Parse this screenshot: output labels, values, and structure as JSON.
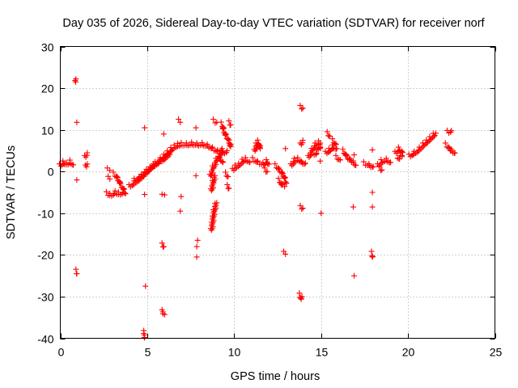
{
  "chart_data": {
    "type": "scatter",
    "title": "Day 035 of 2026, Sidereal Day-to-day VTEC variation (SDTVAR) for receiver norf",
    "xlabel": "GPS time / hours",
    "ylabel": "SDTVAR / TECUs",
    "xlim": [
      0,
      25
    ],
    "ylim": [
      -40,
      30
    ],
    "xticks": [
      0,
      5,
      10,
      15,
      20,
      25
    ],
    "yticks": [
      -40,
      -30,
      -20,
      -10,
      0,
      10,
      20,
      30
    ],
    "xtick_labels": [
      "0",
      "5",
      "10",
      "15",
      "20",
      "25"
    ],
    "ytick_labels": [
      "-40",
      "-30",
      "-20",
      "-10",
      "0",
      "10",
      "20",
      "30"
    ],
    "grid": true,
    "marker": "+",
    "color": "#ff0000",
    "series": [
      {
        "name": "SDTVAR",
        "segments": [
          [
            [
              0.0,
              1.5
            ],
            [
              0.2,
              2.2
            ],
            [
              0.4,
              1.8
            ],
            [
              0.6,
              2.4
            ],
            [
              0.75,
              1.6
            ]
          ],
          [
            [
              1.45,
              3.5
            ],
            [
              1.55,
              4.5
            ]
          ],
          [
            [
              1.5,
              1.2
            ],
            [
              1.55,
              1.8
            ]
          ],
          [
            [
              2.75,
              0.5
            ],
            [
              2.85,
              0.3
            ]
          ],
          [
            [
              2.8,
              -1.5
            ],
            [
              2.85,
              -1.8
            ]
          ],
          [
            [
              2.7,
              -5.2
            ],
            [
              2.9,
              -5.6
            ],
            [
              3.1,
              -5.3
            ]
          ],
          [
            [
              3.1,
              -0.5
            ],
            [
              3.3,
              -1.5
            ],
            [
              3.5,
              -3.2
            ],
            [
              3.7,
              -4.5
            ],
            [
              3.75,
              -5.3
            ]
          ],
          [
            [
              3.2,
              -5.0
            ],
            [
              3.4,
              -5.3
            ],
            [
              3.6,
              -5.1
            ]
          ],
          [
            [
              4.0,
              -3.5
            ],
            [
              4.3,
              -2.6
            ],
            [
              4.6,
              -1.6
            ],
            [
              4.9,
              -0.4
            ],
            [
              5.2,
              0.8
            ],
            [
              5.5,
              2.0
            ],
            [
              5.8,
              3.0
            ],
            [
              6.0,
              3.8
            ],
            [
              6.2,
              4.6
            ],
            [
              6.4,
              5.4
            ],
            [
              6.6,
              6.0
            ],
            [
              6.8,
              6.4
            ],
            [
              7.0,
              6.6
            ],
            [
              7.3,
              6.5
            ],
            [
              7.6,
              6.7
            ],
            [
              7.9,
              6.5
            ],
            [
              8.2,
              6.6
            ],
            [
              8.5,
              6.2
            ],
            [
              8.8,
              5.5
            ],
            [
              9.1,
              4.8
            ],
            [
              9.4,
              4.5
            ],
            [
              9.6,
              5.0
            ]
          ],
          [
            [
              4.3,
              -2.0
            ],
            [
              4.7,
              -1.0
            ],
            [
              5.0,
              0.2
            ],
            [
              5.4,
              1.5
            ],
            [
              5.8,
              2.6
            ],
            [
              6.1,
              3.5
            ],
            [
              6.4,
              5.0
            ]
          ],
          [
            [
              6.85,
              12.2
            ],
            [
              6.9,
              11.8
            ]
          ],
          [
            [
              7.8,
              10.5
            ]
          ],
          [
            [
              8.65,
              -1.0
            ],
            [
              8.8,
              1.0
            ],
            [
              9.0,
              2.8
            ],
            [
              9.2,
              4.0
            ],
            [
              9.3,
              5.5
            ]
          ],
          [
            [
              8.7,
              -4.5
            ],
            [
              8.8,
              -2.5
            ],
            [
              8.9,
              -1.0
            ]
          ],
          [
            [
              9.2,
              3.2
            ],
            [
              9.35,
              2.2
            ]
          ],
          [
            [
              8.7,
              -14.0
            ],
            [
              8.75,
              -12.5
            ],
            [
              8.8,
              -11.0
            ],
            [
              8.85,
              -9.5
            ],
            [
              8.95,
              -8.0
            ],
            [
              9.0,
              -7.5
            ]
          ],
          [
            [
              9.3,
              11.5
            ],
            [
              9.4,
              10.0
            ],
            [
              9.55,
              8.5
            ],
            [
              9.7,
              7.5
            ],
            [
              9.8,
              6.0
            ]
          ],
          [
            [
              8.85,
              12.2
            ],
            [
              9.0,
              11.8
            ]
          ],
          [
            [
              9.55,
              -0.5
            ],
            [
              9.65,
              -1.2
            ]
          ],
          [
            [
              9.65,
              -3.5
            ],
            [
              9.7,
              -4.0
            ]
          ],
          [
            [
              9.75,
              11.8
            ],
            [
              9.8,
              11.2
            ]
          ],
          [
            [
              9.95,
              0.4
            ],
            [
              10.1,
              1.2
            ],
            [
              10.3,
              1.6
            ],
            [
              10.5,
              2.6
            ],
            [
              10.7,
              3.0
            ],
            [
              10.9,
              2.2
            ]
          ],
          [
            [
              11.2,
              5.0
            ],
            [
              11.3,
              6.5
            ],
            [
              11.4,
              7.2
            ],
            [
              11.5,
              5.5
            ]
          ],
          [
            [
              11.1,
              3.0
            ],
            [
              11.4,
              2.2
            ],
            [
              11.7,
              1.8
            ],
            [
              11.9,
              2.5
            ],
            [
              12.0,
              1.8
            ]
          ],
          [
            [
              11.8,
              0.5
            ],
            [
              11.9,
              0.0
            ]
          ],
          [
            [
              12.4,
              1.5
            ],
            [
              12.6,
              0.5
            ],
            [
              12.8,
              -0.5
            ],
            [
              12.95,
              -1.8
            ],
            [
              13.0,
              -2.8
            ]
          ],
          [
            [
              12.6,
              -2.0
            ],
            [
              12.8,
              -3.5
            ],
            [
              12.9,
              -3.6
            ]
          ],
          [
            [
              12.95,
              5.5
            ]
          ],
          [
            [
              12.9,
              -19.5
            ],
            [
              12.95,
              -19.8
            ]
          ],
          [
            [
              13.3,
              1.5
            ],
            [
              13.5,
              2.8
            ],
            [
              13.7,
              3.0
            ],
            [
              13.9,
              2.2
            ],
            [
              14.1,
              2.0
            ]
          ],
          [
            [
              13.85,
              15.5
            ],
            [
              13.95,
              15.2
            ]
          ],
          [
            [
              13.85,
              6.5
            ],
            [
              13.95,
              7.5
            ]
          ],
          [
            [
              13.85,
              -8.5
            ],
            [
              13.95,
              -8.8
            ]
          ],
          [
            [
              13.8,
              -29.5
            ],
            [
              13.85,
              -30.5
            ],
            [
              13.9,
              -30.0
            ]
          ],
          [
            [
              14.3,
              3.5
            ],
            [
              14.5,
              5.2
            ],
            [
              14.7,
              6.5
            ],
            [
              14.9,
              7.0
            ],
            [
              15.0,
              6.5
            ],
            [
              14.8,
              5.0
            ],
            [
              14.6,
              4.0
            ]
          ],
          [
            [
              14.95,
              2.5
            ]
          ],
          [
            [
              15.0,
              -10.0
            ]
          ],
          [
            [
              15.3,
              4.5
            ],
            [
              15.5,
              5.2
            ],
            [
              15.7,
              6.0
            ],
            [
              15.9,
              5.5
            ]
          ],
          [
            [
              15.4,
              9.2
            ],
            [
              15.5,
              8.5
            ]
          ],
          [
            [
              15.7,
              7.5
            ],
            [
              15.85,
              6.5
            ]
          ],
          [
            [
              15.9,
              3.5
            ],
            [
              16.1,
              2.8
            ]
          ],
          [
            [
              16.3,
              5.0
            ],
            [
              16.5,
              3.5
            ],
            [
              16.7,
              2.8
            ],
            [
              16.9,
              2.2
            ],
            [
              17.0,
              1.5
            ]
          ],
          [
            [
              16.9,
              4.0
            ]
          ],
          [
            [
              16.85,
              -8.5
            ]
          ],
          [
            [
              16.9,
              -25.0
            ]
          ],
          [
            [
              17.5,
              2.0
            ],
            [
              17.8,
              1.5
            ],
            [
              18.0,
              1.2
            ]
          ],
          [
            [
              17.95,
              5.2
            ]
          ],
          [
            [
              17.95,
              -5.0
            ]
          ],
          [
            [
              17.95,
              -8.5
            ]
          ],
          [
            [
              17.95,
              -19.5
            ],
            [
              17.95,
              -20.5
            ]
          ],
          [
            [
              18.3,
              1.5
            ],
            [
              18.5,
              2.5
            ],
            [
              18.8,
              2.8
            ],
            [
              19.0,
              2.2
            ]
          ],
          [
            [
              18.4,
              0.8
            ],
            [
              18.5,
              0.4
            ]
          ],
          [
            [
              19.3,
              4.5
            ],
            [
              19.5,
              5.5
            ],
            [
              19.7,
              4.5
            ],
            [
              19.6,
              3.5
            ],
            [
              19.4,
              3.2
            ]
          ],
          [
            [
              20.1,
              3.8
            ],
            [
              20.4,
              4.5
            ],
            [
              20.7,
              5.5
            ],
            [
              20.9,
              6.5
            ],
            [
              21.1,
              7.2
            ],
            [
              21.3,
              8.0
            ],
            [
              21.5,
              8.8
            ],
            [
              21.6,
              9.2
            ]
          ],
          [
            [
              22.2,
              6.5
            ],
            [
              22.4,
              5.5
            ],
            [
              22.55,
              5.0
            ],
            [
              22.7,
              4.5
            ]
          ],
          [
            [
              22.3,
              9.5
            ],
            [
              22.5,
              9.8
            ]
          ],
          [
            [
              0.9,
              21.5
            ],
            [
              0.9,
              22.2
            ]
          ],
          [
            [
              0.95,
              11.8
            ]
          ],
          [
            [
              0.95,
              -2.0
            ]
          ],
          [
            [
              0.95,
              -23.8
            ],
            [
              0.95,
              -24.5
            ]
          ],
          [
            [
              4.85,
              10.5
            ]
          ],
          [
            [
              4.85,
              -5.5
            ]
          ],
          [
            [
              4.9,
              -27.5
            ]
          ],
          [
            [
              4.85,
              -38.5
            ],
            [
              4.85,
              -39.2
            ],
            [
              4.85,
              -39.8
            ]
          ],
          [
            [
              5.95,
              9.0
            ]
          ],
          [
            [
              5.9,
              -5.8
            ],
            [
              6.0,
              -5.6
            ]
          ],
          [
            [
              5.9,
              -17.5
            ],
            [
              5.95,
              -18.0
            ]
          ],
          [
            [
              5.9,
              -33.5
            ],
            [
              5.95,
              -34.0
            ],
            [
              6.0,
              -34.3
            ]
          ],
          [
            [
              6.95,
              -6.0
            ]
          ],
          [
            [
              6.9,
              -9.5
            ]
          ],
          [
            [
              7.8,
              -1.0
            ]
          ],
          [
            [
              7.9,
              -16.5
            ]
          ],
          [
            [
              7.85,
              -18.0
            ]
          ],
          [
            [
              7.85,
              -20.5
            ]
          ]
        ]
      }
    ]
  }
}
